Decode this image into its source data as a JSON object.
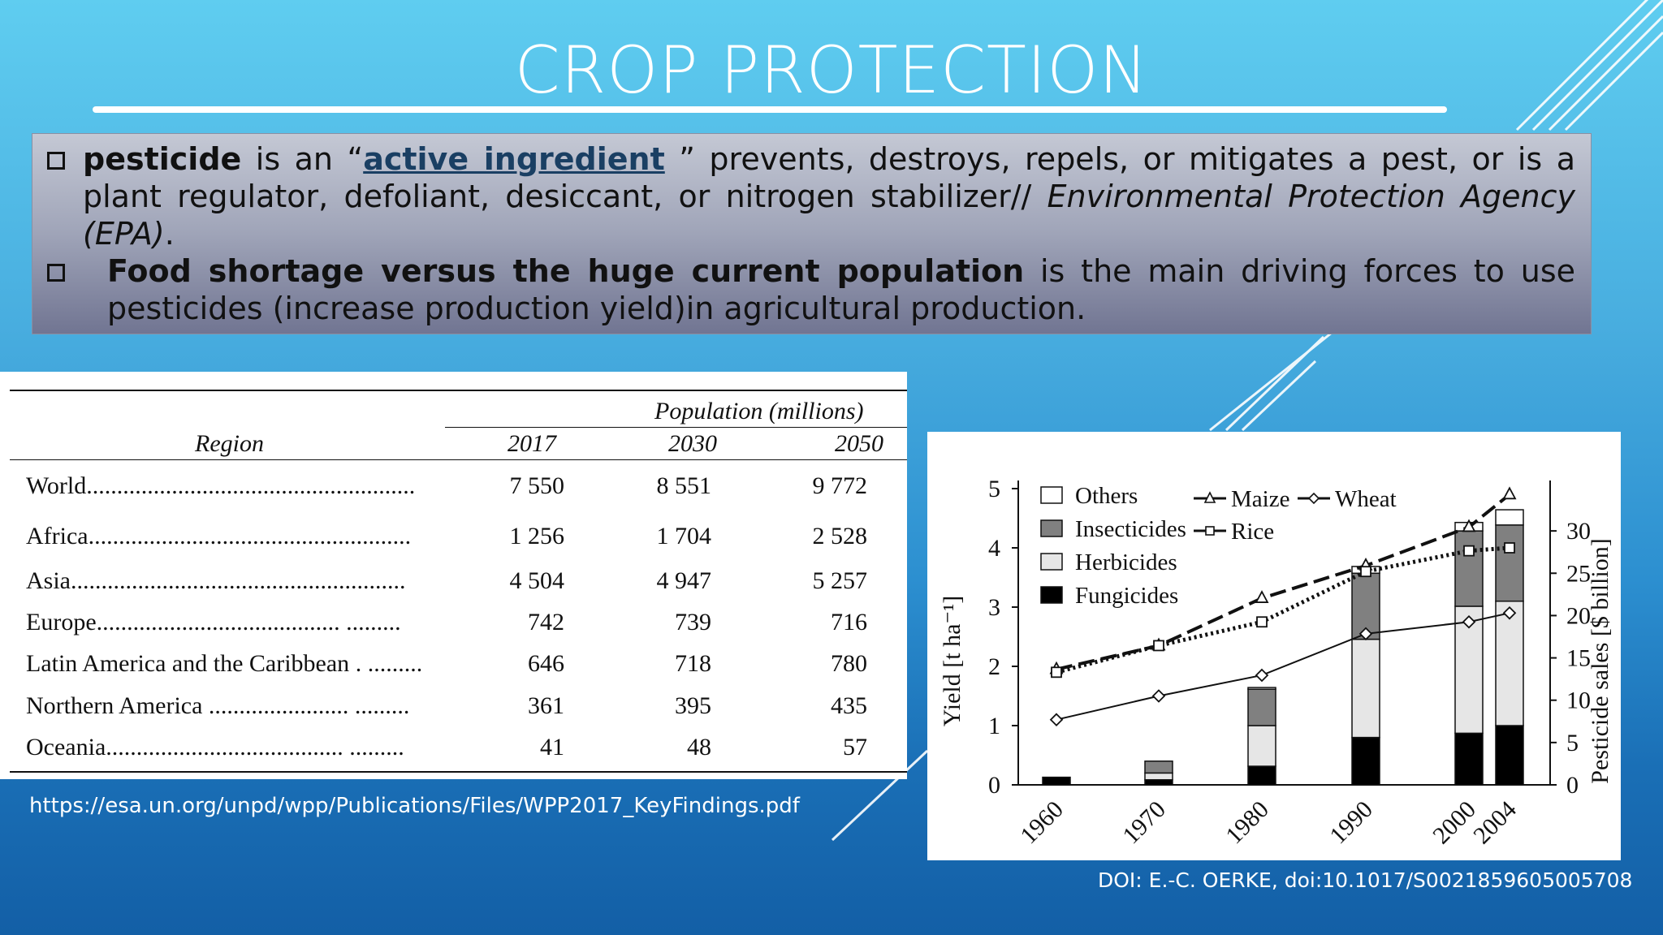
{
  "slide": {
    "title": "CROP PROTECTION",
    "bullet1": {
      "term": "pesticide",
      "lead": " is an “",
      "link": "active ingredient",
      "rest": " ” prevents, destroys, repels, or mitigates a pest, or is a plant regulator, defoliant, desiccant, or nitrogen stabilizer// ",
      "source": "Environmental Protection Agency (EPA)",
      "end": "."
    },
    "bullet2": {
      "term": "Food shortage versus the huge current population",
      "rest": " is the main driving forces to use pesticides (increase production yield)in agricultural production."
    },
    "table_source": "https://esa.un.org/unpd/wpp/Publications/Files/WPP2017_KeyFindings.pdf",
    "chart_source": "DOI: E.-C. OERKE, doi:10.1017/S0021859605005708",
    "colors": {
      "box_top": "#c4c8d4",
      "box_bottom": "#717592",
      "link": "#1a3f63"
    }
  },
  "table": {
    "group_header": "Population (millions)",
    "region_header": "Region",
    "years": [
      "2017",
      "2030",
      "2050"
    ],
    "rows": [
      {
        "region": "World",
        "dots": "......................................................",
        "values": [
          "7 550",
          "8 551",
          "9 772"
        ]
      },
      {
        "region": "Africa",
        "dots": ".....................................................",
        "values": [
          "1 256",
          "1 704",
          "2 528"
        ]
      },
      {
        "region": "Asia",
        "dots": ".......................................................",
        "values": [
          "4 504",
          "4 947",
          "5 257"
        ]
      },
      {
        "region": "Europe",
        "dots": "........................................ .........",
        "values": [
          "742",
          "739",
          "716"
        ]
      },
      {
        "region": "Latin America and the Caribbean",
        "dots": ". .........",
        "values": [
          "646",
          "718",
          "780"
        ]
      },
      {
        "region": "Northern America",
        "dots": "....................... .........",
        "values": [
          "361",
          "395",
          "435"
        ]
      },
      {
        "region": "Oceania",
        "dots": "....................................... .........",
        "values": [
          "41",
          "48",
          "57"
        ]
      }
    ]
  },
  "chart_data": {
    "type": "bar",
    "categories": [
      "1960",
      "1970",
      "1980",
      "1990",
      "2000",
      "2004"
    ],
    "ylabel": "Yield [t ha⁻¹]",
    "y2label": "Pesticide sales [$ billion]",
    "ylim": [
      0,
      5
    ],
    "y2lim": [
      0,
      35
    ],
    "yticks": [
      "0",
      "1",
      "2",
      "3",
      "4",
      "5"
    ],
    "y2ticks": [
      "0",
      "5",
      "10",
      "15",
      "20",
      "25",
      "30"
    ],
    "stacked_series": [
      {
        "name": "Fungicides",
        "color": "#000000",
        "values": [
          0.9,
          0.6,
          2.2,
          5.6,
          6.1,
          7.0
        ]
      },
      {
        "name": "Herbicides",
        "color": "#e6e6e6",
        "values": [
          0.0,
          0.8,
          4.8,
          11.6,
          15.0,
          14.7
        ]
      },
      {
        "name": "Insecticides",
        "color": "#808080",
        "values": [
          0.0,
          1.4,
          4.3,
          7.8,
          8.9,
          9.0
        ]
      },
      {
        "name": "Others",
        "color": "#ffffff",
        "values": [
          0.0,
          0.0,
          0.2,
          0.8,
          1.0,
          1.8
        ]
      }
    ],
    "line_series": [
      {
        "name": "Maize",
        "marker": "triangle",
        "dash": "20 8",
        "values": [
          1.95,
          2.35,
          3.15,
          3.7,
          4.35,
          4.9
        ]
      },
      {
        "name": "Rice",
        "marker": "square",
        "dash": "3 4",
        "values": [
          1.9,
          2.35,
          2.75,
          3.6,
          3.95,
          4.0
        ]
      },
      {
        "name": "Wheat",
        "marker": "diamond",
        "dash": "",
        "values": [
          1.1,
          1.5,
          1.85,
          2.55,
          2.75,
          2.9
        ]
      }
    ],
    "legend_position": "top-left"
  }
}
